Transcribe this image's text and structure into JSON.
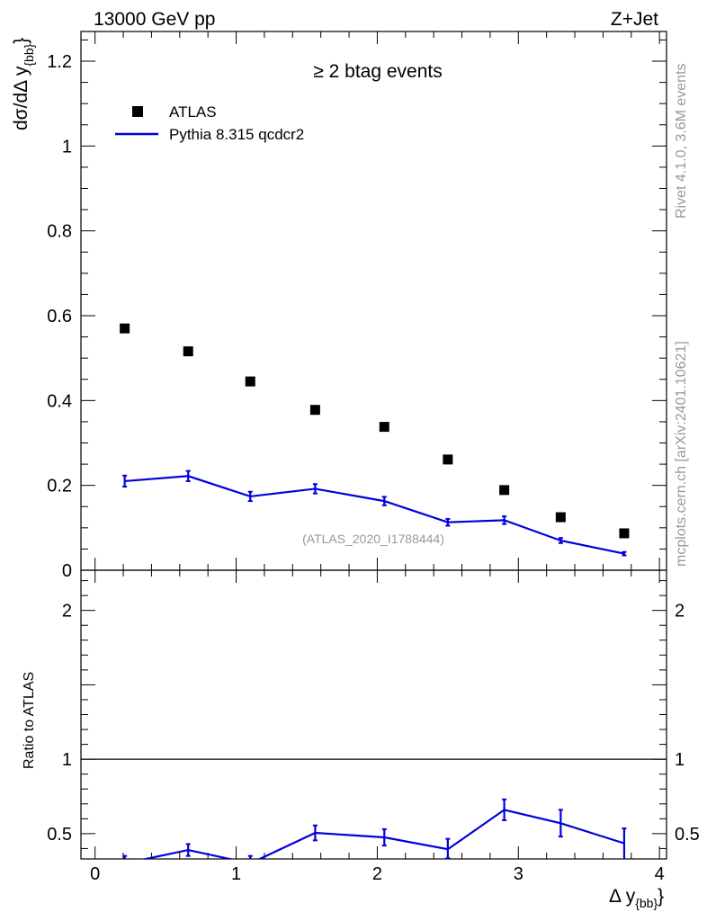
{
  "header": {
    "left": "13000 GeV pp",
    "right": "Z+Jet"
  },
  "side_text": {
    "rivet": "Rivet 4.1.0,  3.6M events",
    "mcplots": "mcplots.cern.ch [arXiv:2401.10621]"
  },
  "colors": {
    "data": "#000000",
    "mc": "#0000dd",
    "watermark": "#999999"
  },
  "chart_data": [
    {
      "type": "scatter",
      "panel": "main",
      "title": "≥ 2 btag events",
      "watermark": "(ATLAS_2020_I1788444)",
      "ylabel": "dσ/dΔ y",
      "ylabel_sub": "{bb}",
      "ylabel_close": "}",
      "xlim": [
        -0.1,
        4.05
      ],
      "ylim": [
        0,
        1.27
      ],
      "yticks": [
        0,
        0.2,
        0.4,
        0.6,
        0.8,
        1,
        1.2
      ],
      "ytick_labels": [
        "0",
        "0.2",
        "0.4",
        "0.6",
        "0.8",
        "1",
        "1.2"
      ],
      "legend": {
        "position": "top-left",
        "entries": [
          {
            "label": "ATLAS",
            "style": "marker"
          },
          {
            "label": "Pythia 8.315 qcdcr2",
            "style": "line"
          }
        ]
      },
      "series": [
        {
          "name": "ATLAS",
          "style": "square-markers",
          "x": [
            0.21,
            0.66,
            1.1,
            1.56,
            2.05,
            2.5,
            2.9,
            3.3,
            3.75
          ],
          "y": [
            0.57,
            0.516,
            0.445,
            0.378,
            0.338,
            0.261,
            0.189,
            0.125,
            0.087
          ]
        },
        {
          "name": "Pythia 8.315 qcdcr2",
          "style": "line-with-errors",
          "x": [
            0.21,
            0.66,
            1.1,
            1.56,
            2.05,
            2.5,
            2.9,
            3.3,
            3.75
          ],
          "y": [
            0.21,
            0.222,
            0.174,
            0.192,
            0.163,
            0.113,
            0.118,
            0.07,
            0.039
          ],
          "yerr": [
            0.013,
            0.012,
            0.011,
            0.011,
            0.01,
            0.008,
            0.009,
            0.006,
            0.004
          ]
        }
      ]
    },
    {
      "type": "line",
      "panel": "ratio",
      "ylabel": "Ratio to ATLAS",
      "xlabel": "Δ y",
      "xlabel_sub": "{bb}",
      "xlabel_close": "}",
      "xlim": [
        -0.1,
        4.05
      ],
      "ylim": [
        0.33,
        2.27
      ],
      "xticks": [
        0,
        1,
        2,
        3,
        4
      ],
      "xtick_labels": [
        "0",
        "1",
        "2",
        "3",
        "4"
      ],
      "yticks": [
        0.5,
        1,
        2
      ],
      "ytick_labels": [
        "0.5",
        "1",
        "2"
      ],
      "reference_line": 1,
      "series": [
        {
          "name": "Pythia 8.315 qcdcr2",
          "x": [
            0.21,
            0.66,
            1.1,
            1.56,
            2.05,
            2.5,
            2.9,
            3.3,
            3.75
          ],
          "y": [
            0.3,
            0.39,
            0.3,
            0.505,
            0.475,
            0.395,
            0.66,
            0.57,
            0.435
          ],
          "yerr_low": [
            0.05,
            0.04,
            0.05,
            0.05,
            0.055,
            0.06,
            0.07,
            0.09,
            0.11
          ],
          "yerr_high": [
            0.05,
            0.04,
            0.05,
            0.05,
            0.055,
            0.07,
            0.07,
            0.09,
            0.1
          ]
        }
      ]
    }
  ]
}
